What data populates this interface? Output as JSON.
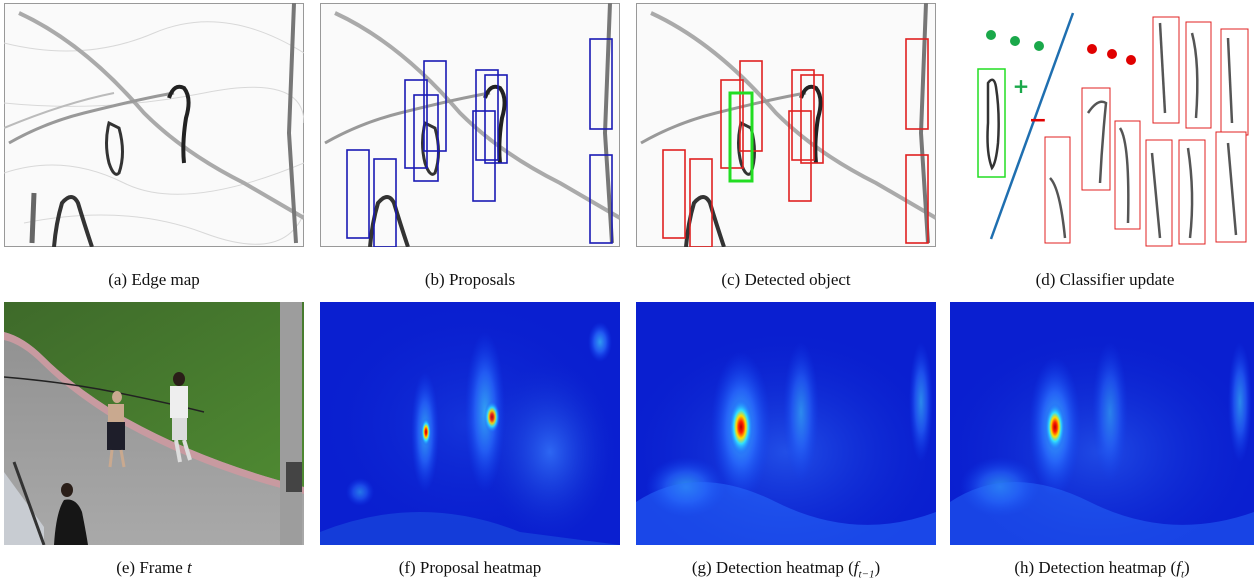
{
  "figure": {
    "panels": [
      {
        "id": "a",
        "caption": "(a) Edge map"
      },
      {
        "id": "b",
        "caption": "(b) Proposals"
      },
      {
        "id": "c",
        "caption": "(c) Detected object"
      },
      {
        "id": "d",
        "caption": "(d) Classifier update"
      },
      {
        "id": "e",
        "caption_prefix": "(e) Frame ",
        "caption_var": "t"
      },
      {
        "id": "f",
        "caption": "(f) Proposal heatmap"
      },
      {
        "id": "g",
        "caption_prefix": "(g) Detection heatmap (",
        "caption_var": "f",
        "caption_sub": "t−1",
        "caption_suffix": ")"
      },
      {
        "id": "h",
        "caption_prefix": "(h) Detection heatmap (",
        "caption_var": "f",
        "caption_sub": "t",
        "caption_suffix": ")"
      }
    ],
    "classifier_signs": {
      "positive": "+",
      "negative": "−"
    },
    "colors": {
      "proposal_box": "#1a1ab5",
      "negative_box": "#e02020",
      "positive_box": "#22dd22",
      "separator": "#1f6fb0",
      "positive_dot": "#1aa84a",
      "negative_dot": "#e00000",
      "heatmap_base": "#0a1fd0",
      "heatmap_peak": "#c00000"
    }
  }
}
